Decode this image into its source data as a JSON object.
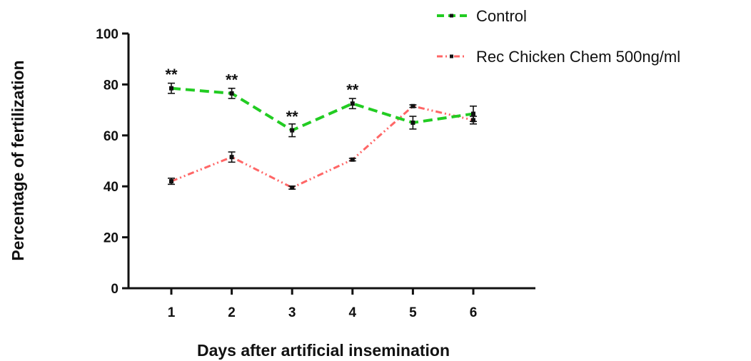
{
  "chart_data": {
    "type": "line",
    "xlabel": "Days after artificial insemination",
    "ylabel": "Percentage of fertilization",
    "ylim": [
      0,
      100
    ],
    "yticks": [
      0,
      20,
      40,
      60,
      80,
      100
    ],
    "x": [
      1,
      2,
      3,
      4,
      5,
      6
    ],
    "xtick_labels": [
      "1",
      "2",
      "3",
      "4",
      "5",
      "6"
    ],
    "legend_position": "top-right",
    "series": [
      {
        "name": "Control",
        "color": "#22cc22",
        "line_style": "dashed",
        "values": [
          78.5,
          76.5,
          62,
          72.5,
          65,
          68.5
        ],
        "errors": [
          2,
          2,
          2.5,
          2,
          2.5,
          3
        ]
      },
      {
        "name": "Rec Chicken Chem 500ng/ml",
        "color": "#ff6666",
        "line_style": "dash-dot-dot",
        "values": [
          42,
          51.5,
          39.5,
          50.5,
          71.5,
          66
        ],
        "errors": [
          1.2,
          2,
          0.6,
          0.5,
          0.5,
          1.5
        ]
      }
    ],
    "annotations": [
      {
        "x": 1,
        "y": 84,
        "text": "**"
      },
      {
        "x": 2,
        "y": 82,
        "text": "**"
      },
      {
        "x": 3,
        "y": 67.5,
        "text": "**"
      },
      {
        "x": 4,
        "y": 78,
        "text": "**"
      }
    ]
  }
}
